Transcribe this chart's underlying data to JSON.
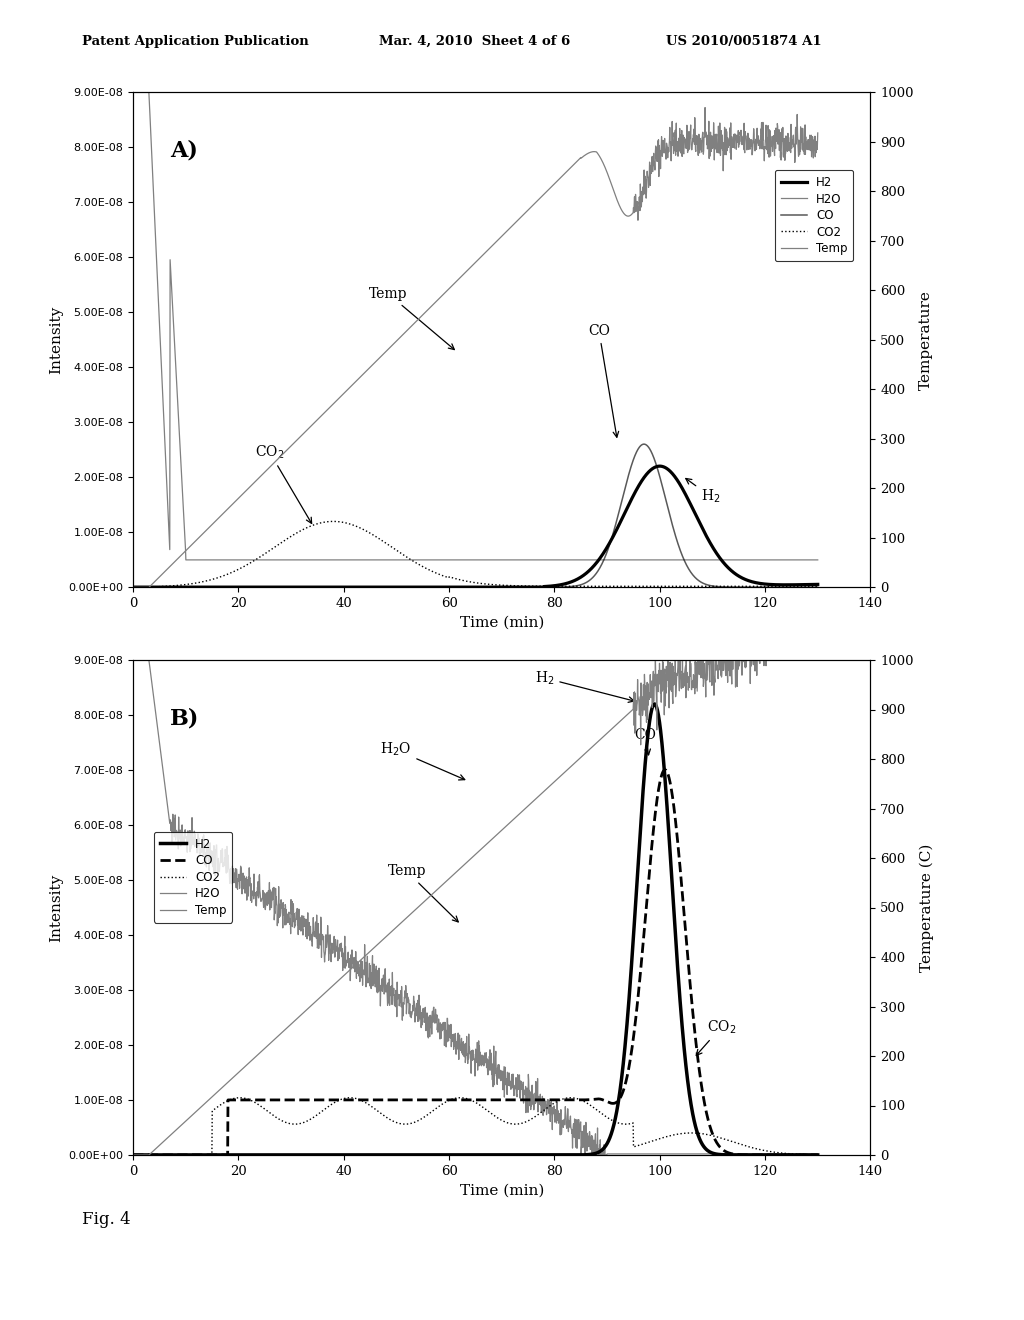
{
  "header_left": "Patent Application Publication",
  "header_mid": "Mar. 4, 2010  Sheet 4 of 6",
  "header_right": "US 2010/0051874 A1",
  "fig_label": "Fig. 4",
  "background_color": "#ffffff",
  "ytick_labels": [
    "0.00E+00",
    "1.00E-08",
    "2.00E-08",
    "3.00E-08",
    "4.00E-08",
    "5.00E-08",
    "6.00E-08",
    "7.00E-08",
    "8.00E-08",
    "9.00E-08"
  ],
  "ytick_values": [
    0,
    1e-08,
    2e-08,
    3e-08,
    4e-08,
    5e-08,
    6e-08,
    7e-08,
    8e-08,
    9e-08
  ],
  "yticks_right": [
    0,
    100,
    200,
    300,
    400,
    500,
    600,
    700,
    800,
    900,
    1000
  ],
  "xticks": [
    0,
    20,
    40,
    60,
    80,
    100,
    120,
    140
  ],
  "xlim": [
    0,
    140
  ],
  "ylim_left": [
    0,
    9e-08
  ],
  "ylim_right": [
    0,
    1000
  ],
  "plot_A": {
    "label": "A)",
    "ylabel_right": "Temperature",
    "legend_entries": [
      "H2",
      "H2O",
      "CO",
      "CO2",
      "Temp"
    ]
  },
  "plot_B": {
    "label": "B)",
    "ylabel_right": "Temperature (C)",
    "legend_entries": [
      "H2",
      "CO",
      "CO2",
      "H2O",
      "Temp"
    ]
  },
  "xlabel": "Time (min)",
  "ylabel_left": "Intensity"
}
